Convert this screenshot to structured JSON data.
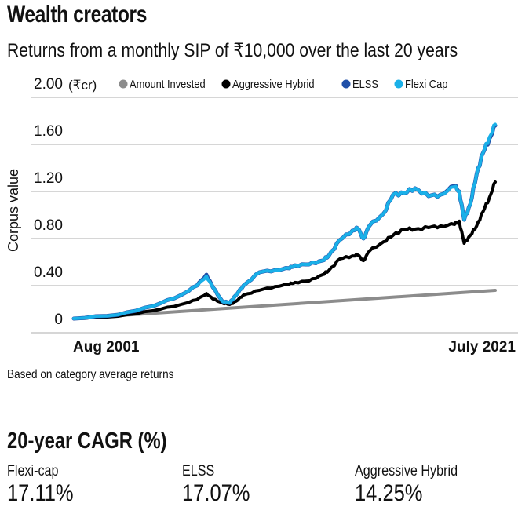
{
  "header": {
    "title": "Wealth creators",
    "subtitle": "Returns from a monthly SIP of ₹10,000 over the last 20 years"
  },
  "note": "Based on category average returns",
  "cagr": {
    "title": "20-year CAGR (%)",
    "items": [
      {
        "label": "Flexi-cap",
        "value": "17.11%"
      },
      {
        "label": "ELSS",
        "value": "17.07%"
      },
      {
        "label": "Aggressive Hybrid",
        "value": "14.25%"
      }
    ]
  },
  "chart_data": {
    "type": "line",
    "title": "",
    "xlabel": "",
    "ylabel": "Corpus value",
    "y_unit": "(₹cr)",
    "ylim": [
      0,
      2.0
    ],
    "y_ticks": [
      0,
      0.4,
      0.8,
      1.2,
      1.6,
      2.0
    ],
    "y_tick_labels": [
      "0",
      "0.40",
      "0.80",
      "1.20",
      "1.60",
      "2.00"
    ],
    "x_range_years": [
      2001.58,
      2021.5
    ],
    "x_tick_labels": [
      "Aug 2001",
      "July 2021"
    ],
    "x_ticks_years": [
      2001.58,
      2021.5
    ],
    "grid": true,
    "legend_position": "top",
    "series": [
      {
        "name": "Amount Invested",
        "color": "#8c8c8c",
        "points": [
          [
            2001.58,
            0.0
          ],
          [
            2021.5,
            0.24
          ]
        ]
      },
      {
        "name": "Aggressive Hybrid",
        "color": "#000000",
        "points": [
          [
            2001.58,
            0.0
          ],
          [
            2003.67,
            0.02
          ],
          [
            2005.35,
            0.067
          ],
          [
            2006.65,
            0.12
          ],
          [
            2007.4,
            0.16
          ],
          [
            2007.85,
            0.213
          ],
          [
            2008.15,
            0.167
          ],
          [
            2008.6,
            0.133
          ],
          [
            2008.95,
            0.12
          ],
          [
            2009.25,
            0.147
          ],
          [
            2009.6,
            0.2
          ],
          [
            2010.35,
            0.24
          ],
          [
            2011.1,
            0.273
          ],
          [
            2011.77,
            0.293
          ],
          [
            2012.03,
            0.307
          ],
          [
            2012.7,
            0.32
          ],
          [
            2013.33,
            0.373
          ],
          [
            2013.63,
            0.407
          ],
          [
            2014.15,
            0.507
          ],
          [
            2014.75,
            0.533
          ],
          [
            2015.0,
            0.54
          ],
          [
            2015.27,
            0.493
          ],
          [
            2015.55,
            0.573
          ],
          [
            2016.22,
            0.653
          ],
          [
            2016.67,
            0.707
          ],
          [
            2017.19,
            0.76
          ],
          [
            2017.71,
            0.76
          ],
          [
            2018.35,
            0.773
          ],
          [
            2018.91,
            0.787
          ],
          [
            2019.58,
            0.8
          ],
          [
            2019.8,
            0.827
          ],
          [
            2020.03,
            0.64
          ],
          [
            2020.32,
            0.707
          ],
          [
            2020.62,
            0.787
          ],
          [
            2020.92,
            0.907
          ],
          [
            2021.22,
            1.027
          ],
          [
            2021.5,
            1.16
          ]
        ]
      },
      {
        "name": "ELSS",
        "color": "#1f4fa8",
        "points": [
          [
            2001.58,
            0.0
          ],
          [
            2003.67,
            0.033
          ],
          [
            2005.35,
            0.107
          ],
          [
            2006.65,
            0.2
          ],
          [
            2007.4,
            0.28
          ],
          [
            2007.85,
            0.373
          ],
          [
            2008.15,
            0.267
          ],
          [
            2008.6,
            0.147
          ],
          [
            2008.95,
            0.133
          ],
          [
            2009.25,
            0.2
          ],
          [
            2009.6,
            0.28
          ],
          [
            2010.35,
            0.393
          ],
          [
            2011.1,
            0.413
          ],
          [
            2011.77,
            0.427
          ],
          [
            2012.03,
            0.453
          ],
          [
            2012.7,
            0.46
          ],
          [
            2013.33,
            0.493
          ],
          [
            2013.63,
            0.533
          ],
          [
            2014.15,
            0.667
          ],
          [
            2014.75,
            0.747
          ],
          [
            2015.0,
            0.767
          ],
          [
            2015.27,
            0.68
          ],
          [
            2015.55,
            0.787
          ],
          [
            2016.22,
            0.893
          ],
          [
            2016.67,
            1.053
          ],
          [
            2017.19,
            1.067
          ],
          [
            2017.71,
            1.107
          ],
          [
            2018.35,
            1.04
          ],
          [
            2018.91,
            1.053
          ],
          [
            2019.58,
            1.127
          ],
          [
            2019.8,
            1.08
          ],
          [
            2020.03,
            0.84
          ],
          [
            2020.32,
            0.973
          ],
          [
            2020.62,
            1.227
          ],
          [
            2020.92,
            1.407
          ],
          [
            2021.22,
            1.527
          ],
          [
            2021.5,
            1.64
          ]
        ]
      },
      {
        "name": "Flexi Cap",
        "color": "#1ab0e8",
        "points": [
          [
            2001.58,
            0.0
          ],
          [
            2003.67,
            0.033
          ],
          [
            2005.35,
            0.107
          ],
          [
            2006.65,
            0.2
          ],
          [
            2007.4,
            0.28
          ],
          [
            2007.85,
            0.36
          ],
          [
            2008.15,
            0.267
          ],
          [
            2008.6,
            0.147
          ],
          [
            2008.95,
            0.133
          ],
          [
            2009.25,
            0.2
          ],
          [
            2009.6,
            0.28
          ],
          [
            2010.35,
            0.393
          ],
          [
            2011.1,
            0.413
          ],
          [
            2011.77,
            0.427
          ],
          [
            2012.03,
            0.453
          ],
          [
            2012.7,
            0.46
          ],
          [
            2013.33,
            0.493
          ],
          [
            2013.63,
            0.533
          ],
          [
            2014.15,
            0.667
          ],
          [
            2014.75,
            0.747
          ],
          [
            2015.0,
            0.767
          ],
          [
            2015.27,
            0.68
          ],
          [
            2015.55,
            0.787
          ],
          [
            2016.22,
            0.893
          ],
          [
            2016.67,
            1.053
          ],
          [
            2017.19,
            1.067
          ],
          [
            2017.71,
            1.107
          ],
          [
            2018.35,
            1.04
          ],
          [
            2018.91,
            1.053
          ],
          [
            2019.58,
            1.12
          ],
          [
            2019.8,
            1.08
          ],
          [
            2020.03,
            0.84
          ],
          [
            2020.32,
            0.973
          ],
          [
            2020.62,
            1.227
          ],
          [
            2020.92,
            1.407
          ],
          [
            2021.22,
            1.54
          ],
          [
            2021.5,
            1.65
          ]
        ]
      }
    ]
  }
}
